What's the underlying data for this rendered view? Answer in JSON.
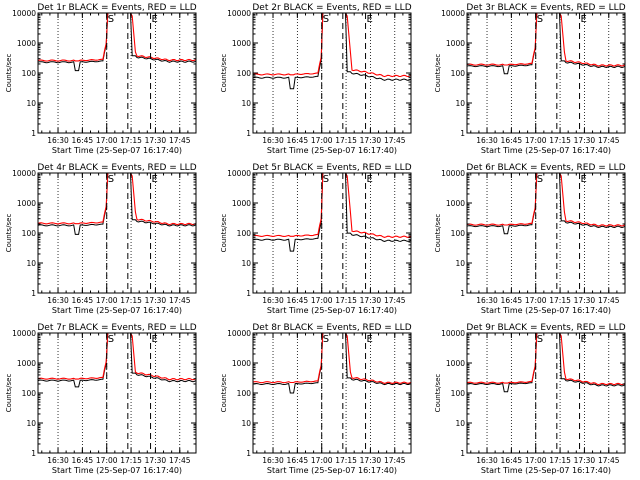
{
  "colors": {
    "events": "#000000",
    "lld": "#ff0000",
    "background": "#ffffff"
  },
  "chart_data": {
    "type": "line",
    "grid": {
      "rows": 3,
      "cols": 3
    },
    "yscale": "log",
    "ylim": [
      1,
      10000
    ],
    "yticks": [
      1,
      10,
      100,
      1000,
      10000
    ],
    "ytick_labels": [
      "1",
      "10",
      "100",
      "1000",
      "10000"
    ],
    "ylabel": "Counts/sec",
    "xlabel": "Start Time (25-Sep-07 16:17:40)",
    "xlim": [
      "16:17:40",
      "17:55:00"
    ],
    "xtick_labels": [
      "16:30",
      "16:45",
      "17:00",
      "17:15",
      "17:30",
      "17:45"
    ],
    "xtick_minutes": [
      30,
      45,
      60,
      75,
      90,
      105
    ],
    "dotted_minutes": [
      30,
      45,
      60,
      75,
      90,
      105
    ],
    "dashed_minutes": [
      60,
      73,
      87
    ],
    "markers": [
      {
        "label": "S",
        "minute": 60
      },
      {
        "label": "E",
        "minute": 87
      }
    ],
    "panels": [
      {
        "title": "Det 1r BLACK = Events, RED = LLD",
        "base_ev": 230,
        "base_lld": 260,
        "dip": 120,
        "post_ev": 340,
        "post_lld": 380,
        "end_ev": 240,
        "end_lld": 270
      },
      {
        "title": "Det 2r BLACK = Events, RED = LLD",
        "base_ev": 70,
        "base_lld": 90,
        "dip": 30,
        "post_ev": 100,
        "post_lld": 130,
        "end_ev": 60,
        "end_lld": 80
      },
      {
        "title": "Det 3r BLACK = Events, RED = LLD",
        "base_ev": 170,
        "base_lld": 190,
        "dip": 95,
        "post_ev": 230,
        "post_lld": 260,
        "end_ev": 160,
        "end_lld": 180
      },
      {
        "title": "Det 4r BLACK = Events, RED = LLD",
        "base_ev": 180,
        "base_lld": 210,
        "dip": 90,
        "post_ev": 250,
        "post_lld": 290,
        "end_ev": 180,
        "end_lld": 200
      },
      {
        "title": "Det 5r BLACK = Events, RED = LLD",
        "base_ev": 60,
        "base_lld": 80,
        "dip": 25,
        "post_ev": 90,
        "post_lld": 120,
        "end_ev": 55,
        "end_lld": 75
      },
      {
        "title": "Det 6r BLACK = Events, RED = LLD",
        "base_ev": 170,
        "base_lld": 190,
        "dip": 95,
        "post_ev": 230,
        "post_lld": 260,
        "end_ev": 160,
        "end_lld": 180
      },
      {
        "title": "Det 7r BLACK = Events, RED = LLD",
        "base_ev": 260,
        "base_lld": 300,
        "dip": 160,
        "post_ev": 420,
        "post_lld": 480,
        "end_ev": 250,
        "end_lld": 290
      },
      {
        "title": "Det 8r BLACK = Events, RED = LLD",
        "base_ev": 200,
        "base_lld": 230,
        "dip": 100,
        "post_ev": 290,
        "post_lld": 330,
        "end_ev": 200,
        "end_lld": 220
      },
      {
        "title": "Det 9r BLACK = Events, RED = LLD",
        "base_ev": 200,
        "base_lld": 220,
        "dip": 110,
        "post_ev": 270,
        "post_lld": 300,
        "end_ev": 180,
        "end_lld": 200
      }
    ]
  }
}
